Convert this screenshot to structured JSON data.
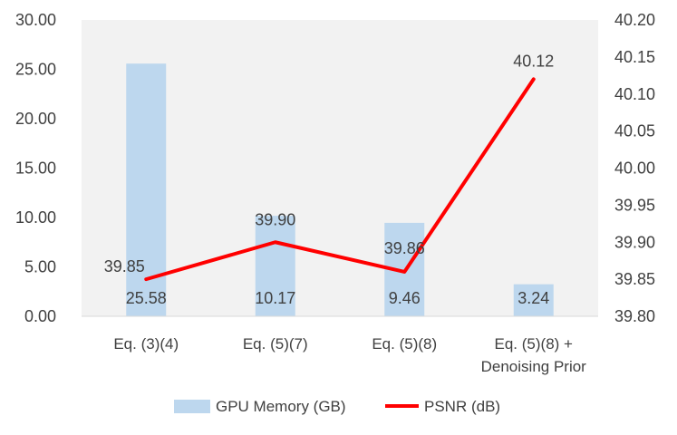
{
  "chart_data": {
    "type": "bar+line",
    "categories": [
      [
        "Eq. (3)(4)"
      ],
      [
        "Eq. (5)(7)"
      ],
      [
        "Eq. (5)(8)"
      ],
      [
        "Eq. (5)(8) +",
        "Denoising Prior"
      ]
    ],
    "series": [
      {
        "name": "GPU Memory (GB)",
        "type": "bar",
        "axis": "left",
        "values": [
          25.58,
          10.17,
          9.46,
          3.24
        ],
        "labels": [
          "25.58",
          "10.17",
          "9.46",
          "3.24"
        ],
        "color": "#bdd7ee"
      },
      {
        "name": "PSNR (dB)",
        "type": "line",
        "axis": "right",
        "values": [
          39.85,
          39.9,
          39.86,
          40.12
        ],
        "labels": [
          "39.85",
          "39.90",
          "39.86",
          "40.12"
        ],
        "color": "#ff0000"
      }
    ],
    "left_axis": {
      "ylim": [
        0,
        30
      ],
      "ticks": [
        "0.00",
        "5.00",
        "10.00",
        "15.00",
        "20.00",
        "25.00",
        "30.00"
      ]
    },
    "right_axis": {
      "ylim": [
        39.8,
        40.2
      ],
      "ticks": [
        "39.80",
        "39.85",
        "39.90",
        "39.95",
        "40.00",
        "40.05",
        "40.10",
        "40.15",
        "40.20"
      ]
    },
    "grid": false,
    "legend": "bottom",
    "plot_background": "#f2f2f2"
  }
}
